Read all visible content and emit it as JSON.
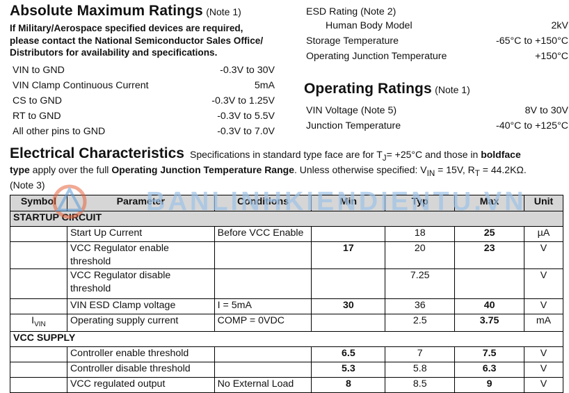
{
  "abs_max": {
    "title": "Absolute Maximum Ratings",
    "note": "(Note 1)",
    "warning_lines": [
      "If Military/Aerospace specified devices are required,",
      "please contact the National Semiconductor Sales Office/",
      "Distributors for availability and specifications."
    ],
    "rows": [
      {
        "label": "VIN to GND",
        "value": "-0.3V to 30V"
      },
      {
        "label": "VIN Clamp Continuous Current",
        "value": "5mA"
      },
      {
        "label": "CS to GND",
        "value": "-0.3V to 1.25V"
      },
      {
        "label": "RT to GND",
        "value": "-0.3V to 5.5V"
      },
      {
        "label": "All other pins to GND",
        "value": "-0.3V to 7.0V"
      }
    ],
    "right_rows": [
      {
        "label": "ESD Rating (Note 2)",
        "value": ""
      },
      {
        "label": "Human Body Model",
        "value": "2kV"
      },
      {
        "label": "Storage Temperature",
        "value": "-65°C to +150°C"
      },
      {
        "label": "Operating Junction Temperature",
        "value": "+150°C"
      }
    ]
  },
  "op_ratings": {
    "title": "Operating Ratings",
    "note": "(Note 1)",
    "rows": [
      {
        "label": "VIN Voltage (Note 5)",
        "value": "8V to 30V"
      },
      {
        "label": "Junction Temperature",
        "value": "-40°C to +125°C"
      }
    ]
  },
  "ec": {
    "title": "Electrical Characteristics",
    "desc_1": "Specifications in standard type face are for T",
    "desc_1_sub": "J",
    "desc_2": "= +25°C and those in ",
    "desc_bold_1": "boldface",
    "desc_bold_2": "type",
    "desc_3": " apply over the full ",
    "desc_bold_3": "Operating Junction Temperature Range",
    "desc_4": ". Unless otherwise specified: V",
    "desc_4_sub": "IN",
    "desc_5": " = 15V, R",
    "desc_5_sub": "T",
    "desc_6": " = 44.2KΩ.",
    "desc_note": "(Note 3)",
    "headers": [
      "Symbol",
      "Parameter",
      "Conditions",
      "Min",
      "Typ",
      "Max",
      "Unit"
    ],
    "sections": [
      {
        "title": "STARTUP CIRCUIT",
        "rows": [
          {
            "symbol": "",
            "symbol_sub": "",
            "parameter": "Start Up Current",
            "conditions": "Before VCC Enable",
            "min": "",
            "typ": "18",
            "max": "25",
            "unit": "µA"
          },
          {
            "symbol": "",
            "symbol_sub": "",
            "parameter": "VCC Regulator enable threshold",
            "conditions": "",
            "min": "17",
            "typ": "20",
            "max": "23",
            "unit": "V"
          },
          {
            "symbol": "",
            "symbol_sub": "",
            "parameter": "VCC Regulator disable threshold",
            "conditions": "",
            "min": "",
            "typ": "7.25",
            "max": "",
            "unit": "V"
          },
          {
            "symbol": "",
            "symbol_sub": "",
            "parameter": "VIN ESD Clamp voltage",
            "conditions": "I = 5mA",
            "min": "30",
            "typ": "36",
            "max": "40",
            "unit": "V"
          },
          {
            "symbol": "I",
            "symbol_sub": "VIN",
            "parameter": "Operating supply current",
            "conditions": "COMP = 0VDC",
            "min": "",
            "typ": "2.5",
            "max": "3.75",
            "unit": "mA"
          }
        ]
      },
      {
        "title": "VCC SUPPLY",
        "rows": [
          {
            "symbol": "",
            "symbol_sub": "",
            "parameter": "Controller enable threshold",
            "conditions": "",
            "min": "6.5",
            "typ": "7",
            "max": "7.5",
            "unit": "V"
          },
          {
            "symbol": "",
            "symbol_sub": "",
            "parameter": "Controller disable threshold",
            "conditions": "",
            "min": "5.3",
            "typ": "5.8",
            "max": "6.3",
            "unit": "V"
          },
          {
            "symbol": "",
            "symbol_sub": "",
            "parameter": "VCC regulated output",
            "conditions": "No External Load",
            "min": "8",
            "typ": "8.5",
            "max": "9",
            "unit": "V"
          }
        ]
      }
    ]
  },
  "watermark": {
    "text": "BANLINHKIENDIENTU.VN",
    "color": "#9ec3e8",
    "logo_color": "#e8643c"
  }
}
